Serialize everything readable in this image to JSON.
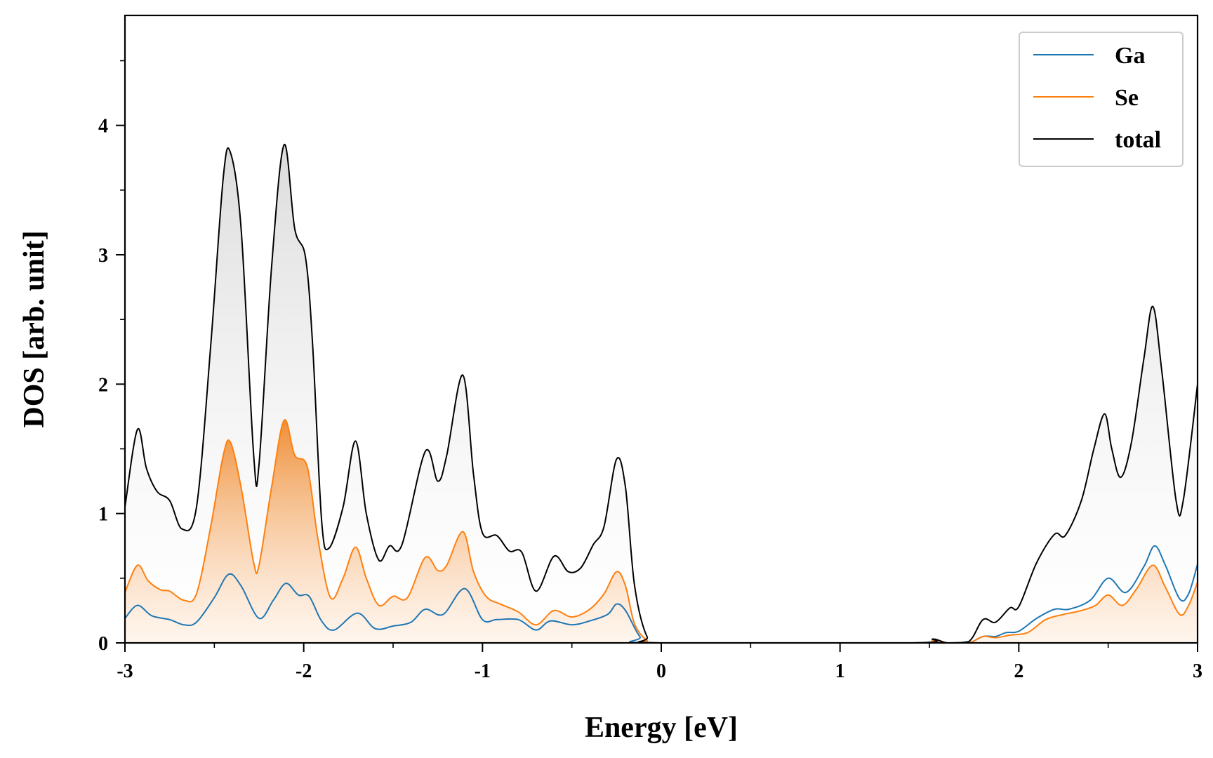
{
  "chart_data": {
    "type": "line",
    "title": "",
    "xlabel": "Energy [eV]",
    "ylabel": "DOS [arb. unit]",
    "xlim": [
      -3,
      3
    ],
    "ylim": [
      0,
      4.85
    ],
    "xticks": [
      -3,
      -2,
      -1,
      0,
      1,
      2,
      3
    ],
    "xtick_labels": [
      "-3",
      "-2",
      "-1",
      "0",
      "1",
      "2",
      "3"
    ],
    "yticks": [
      0,
      1,
      2,
      3,
      4
    ],
    "ytick_labels": [
      "0",
      "1",
      "2",
      "3",
      "4"
    ],
    "legend_position": "top-right",
    "series": [
      {
        "name": "Ga",
        "color": "#1f77b4",
        "fill": false,
        "points": [
          [
            -3.0,
            0.19
          ],
          [
            -2.93,
            0.29
          ],
          [
            -2.85,
            0.21
          ],
          [
            -2.75,
            0.18
          ],
          [
            -2.67,
            0.14
          ],
          [
            -2.6,
            0.16
          ],
          [
            -2.5,
            0.35
          ],
          [
            -2.42,
            0.53
          ],
          [
            -2.35,
            0.44
          ],
          [
            -2.25,
            0.19
          ],
          [
            -2.17,
            0.33
          ],
          [
            -2.1,
            0.46
          ],
          [
            -2.03,
            0.37
          ],
          [
            -1.97,
            0.36
          ],
          [
            -1.9,
            0.17
          ],
          [
            -1.83,
            0.1
          ],
          [
            -1.7,
            0.23
          ],
          [
            -1.6,
            0.11
          ],
          [
            -1.5,
            0.13
          ],
          [
            -1.4,
            0.16
          ],
          [
            -1.32,
            0.26
          ],
          [
            -1.22,
            0.22
          ],
          [
            -1.1,
            0.42
          ],
          [
            -1.0,
            0.18
          ],
          [
            -0.92,
            0.18
          ],
          [
            -0.8,
            0.18
          ],
          [
            -0.7,
            0.1
          ],
          [
            -0.62,
            0.17
          ],
          [
            -0.5,
            0.14
          ],
          [
            -0.4,
            0.17
          ],
          [
            -0.3,
            0.22
          ],
          [
            -0.25,
            0.3
          ],
          [
            -0.2,
            0.25
          ],
          [
            -0.12,
            0.05
          ],
          [
            -0.05,
            0.0
          ],
          [
            1.4,
            0.0
          ],
          [
            1.52,
            0.02
          ],
          [
            1.6,
            0.0
          ],
          [
            1.72,
            0.0
          ],
          [
            1.8,
            0.05
          ],
          [
            1.87,
            0.05
          ],
          [
            1.93,
            0.08
          ],
          [
            2.0,
            0.09
          ],
          [
            2.1,
            0.19
          ],
          [
            2.2,
            0.26
          ],
          [
            2.28,
            0.26
          ],
          [
            2.4,
            0.33
          ],
          [
            2.5,
            0.5
          ],
          [
            2.6,
            0.39
          ],
          [
            2.7,
            0.59
          ],
          [
            2.76,
            0.75
          ],
          [
            2.82,
            0.6
          ],
          [
            2.9,
            0.34
          ],
          [
            2.95,
            0.38
          ],
          [
            3.0,
            0.61
          ]
        ]
      },
      {
        "name": "Se",
        "color": "#ff7f0e",
        "fill": true,
        "points": [
          [
            -3.0,
            0.39
          ],
          [
            -2.93,
            0.6
          ],
          [
            -2.87,
            0.48
          ],
          [
            -2.8,
            0.41
          ],
          [
            -2.75,
            0.4
          ],
          [
            -2.67,
            0.33
          ],
          [
            -2.6,
            0.38
          ],
          [
            -2.52,
            0.9
          ],
          [
            -2.45,
            1.45
          ],
          [
            -2.41,
            1.55
          ],
          [
            -2.35,
            1.2
          ],
          [
            -2.28,
            0.62
          ],
          [
            -2.25,
            0.6
          ],
          [
            -2.18,
            1.2
          ],
          [
            -2.11,
            1.72
          ],
          [
            -2.05,
            1.45
          ],
          [
            -1.98,
            1.36
          ],
          [
            -1.92,
            0.8
          ],
          [
            -1.85,
            0.35
          ],
          [
            -1.78,
            0.5
          ],
          [
            -1.71,
            0.74
          ],
          [
            -1.65,
            0.5
          ],
          [
            -1.58,
            0.29
          ],
          [
            -1.5,
            0.36
          ],
          [
            -1.42,
            0.35
          ],
          [
            -1.32,
            0.66
          ],
          [
            -1.25,
            0.56
          ],
          [
            -1.2,
            0.6
          ],
          [
            -1.11,
            0.86
          ],
          [
            -1.05,
            0.55
          ],
          [
            -0.98,
            0.36
          ],
          [
            -0.9,
            0.3
          ],
          [
            -0.8,
            0.24
          ],
          [
            -0.7,
            0.14
          ],
          [
            -0.6,
            0.25
          ],
          [
            -0.5,
            0.2
          ],
          [
            -0.4,
            0.26
          ],
          [
            -0.32,
            0.38
          ],
          [
            -0.25,
            0.55
          ],
          [
            -0.2,
            0.44
          ],
          [
            -0.15,
            0.15
          ],
          [
            -0.08,
            0.02
          ],
          [
            0.0,
            0.0
          ],
          [
            1.4,
            0.0
          ],
          [
            1.52,
            0.02
          ],
          [
            1.6,
            0.0
          ],
          [
            1.72,
            0.0
          ],
          [
            1.8,
            0.05
          ],
          [
            1.87,
            0.04
          ],
          [
            1.95,
            0.06
          ],
          [
            2.05,
            0.08
          ],
          [
            2.15,
            0.18
          ],
          [
            2.25,
            0.22
          ],
          [
            2.35,
            0.25
          ],
          [
            2.43,
            0.29
          ],
          [
            2.5,
            0.37
          ],
          [
            2.58,
            0.29
          ],
          [
            2.66,
            0.42
          ],
          [
            2.75,
            0.6
          ],
          [
            2.82,
            0.43
          ],
          [
            2.9,
            0.22
          ],
          [
            2.95,
            0.29
          ],
          [
            3.0,
            0.47
          ]
        ]
      },
      {
        "name": "total",
        "color": "#000000",
        "fill": true,
        "points": [
          [
            -3.0,
            1.05
          ],
          [
            -2.93,
            1.65
          ],
          [
            -2.88,
            1.35
          ],
          [
            -2.82,
            1.17
          ],
          [
            -2.75,
            1.1
          ],
          [
            -2.68,
            0.88
          ],
          [
            -2.6,
            1.05
          ],
          [
            -2.52,
            2.3
          ],
          [
            -2.45,
            3.6
          ],
          [
            -2.41,
            3.79
          ],
          [
            -2.35,
            3.2
          ],
          [
            -2.28,
            1.45
          ],
          [
            -2.25,
            1.38
          ],
          [
            -2.18,
            2.9
          ],
          [
            -2.11,
            3.85
          ],
          [
            -2.05,
            3.2
          ],
          [
            -1.99,
            2.98
          ],
          [
            -1.95,
            2.3
          ],
          [
            -1.9,
            0.95
          ],
          [
            -1.86,
            0.73
          ],
          [
            -1.78,
            1.05
          ],
          [
            -1.71,
            1.56
          ],
          [
            -1.65,
            1.0
          ],
          [
            -1.58,
            0.64
          ],
          [
            -1.52,
            0.75
          ],
          [
            -1.45,
            0.76
          ],
          [
            -1.32,
            1.48
          ],
          [
            -1.25,
            1.25
          ],
          [
            -1.2,
            1.45
          ],
          [
            -1.11,
            2.07
          ],
          [
            -1.05,
            1.3
          ],
          [
            -1.0,
            0.85
          ],
          [
            -0.92,
            0.83
          ],
          [
            -0.85,
            0.71
          ],
          [
            -0.78,
            0.7
          ],
          [
            -0.7,
            0.4
          ],
          [
            -0.6,
            0.67
          ],
          [
            -0.52,
            0.55
          ],
          [
            -0.45,
            0.58
          ],
          [
            -0.38,
            0.76
          ],
          [
            -0.32,
            0.9
          ],
          [
            -0.25,
            1.42
          ],
          [
            -0.2,
            1.2
          ],
          [
            -0.15,
            0.45
          ],
          [
            -0.08,
            0.05
          ],
          [
            0.0,
            0.0
          ],
          [
            1.4,
            0.0
          ],
          [
            1.52,
            0.03
          ],
          [
            1.6,
            0.0
          ],
          [
            1.72,
            0.01
          ],
          [
            1.8,
            0.18
          ],
          [
            1.87,
            0.16
          ],
          [
            1.95,
            0.27
          ],
          [
            2.0,
            0.28
          ],
          [
            2.1,
            0.62
          ],
          [
            2.2,
            0.84
          ],
          [
            2.26,
            0.83
          ],
          [
            2.35,
            1.1
          ],
          [
            2.42,
            1.5
          ],
          [
            2.48,
            1.77
          ],
          [
            2.52,
            1.5
          ],
          [
            2.57,
            1.28
          ],
          [
            2.63,
            1.55
          ],
          [
            2.7,
            2.2
          ],
          [
            2.75,
            2.6
          ],
          [
            2.8,
            2.1
          ],
          [
            2.88,
            1.1
          ],
          [
            2.92,
            1.1
          ],
          [
            3.0,
            2.0
          ]
        ]
      }
    ]
  }
}
